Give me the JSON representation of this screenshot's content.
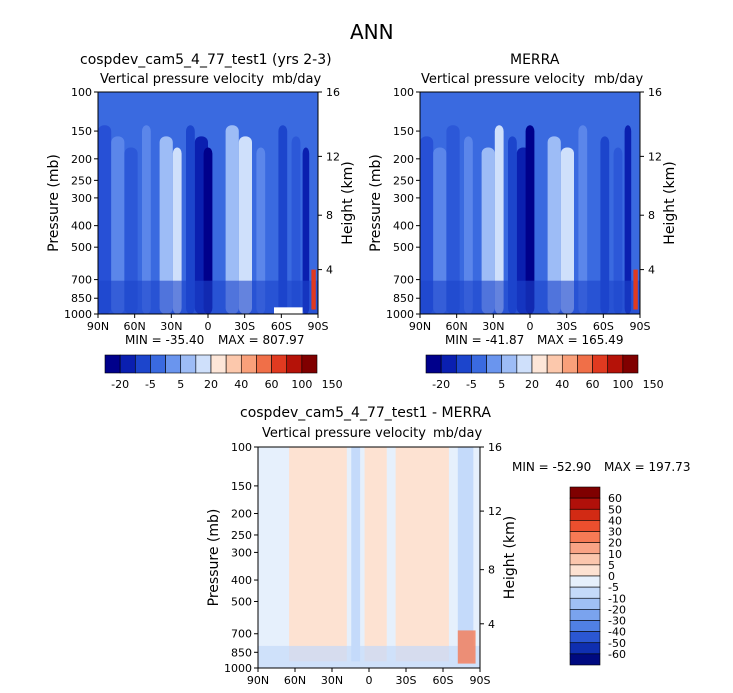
{
  "figure": {
    "title": "ANN"
  },
  "chart_data": [
    {
      "type": "heatmap",
      "title": "cospdev_cam5_4_77_test1 (yrs 2-3)",
      "subtitle_left": "Vertical pressure velocity",
      "subtitle_right": "mb/day",
      "xlabel": "",
      "ylabel": "Pressure (mb)",
      "y2label": "Height (km)",
      "x_ticks": [
        "90N",
        "60N",
        "30N",
        "0",
        "30S",
        "60S",
        "90S"
      ],
      "y_ticks": [
        "100",
        "150",
        "200",
        "250",
        "300",
        "400",
        "500",
        "700",
        "850",
        "1000"
      ],
      "y2_ticks": [
        "16",
        "12",
        "8",
        "4"
      ],
      "ylim": [
        1000,
        100
      ],
      "y_scale": "log",
      "stats": {
        "min_label": "MIN = -35.40",
        "max_label": "MAX = 807.97"
      },
      "colorbar": {
        "labels": [
          "-20",
          "-5",
          "5",
          "20",
          "40",
          "60",
          "100",
          "150"
        ],
        "colors": [
          "#00008b",
          "#0a1fb0",
          "#1c45cc",
          "#3a6ae0",
          "#6a95ee",
          "#9dbcf6",
          "#cfe0fb",
          "#fde6d8",
          "#fcc8ac",
          "#f9a07a",
          "#f06f48",
          "#e03a20",
          "#b51208",
          "#800000"
        ]
      }
    },
    {
      "type": "heatmap",
      "title": "MERRA",
      "subtitle_left": "Vertical pressure velocity",
      "subtitle_right": "mb/day",
      "xlabel": "",
      "ylabel": "Pressure (mb)",
      "y2label": "Height (km)",
      "x_ticks": [
        "90N",
        "60N",
        "30N",
        "0",
        "30S",
        "60S",
        "90S"
      ],
      "y_ticks": [
        "100",
        "150",
        "200",
        "250",
        "300",
        "400",
        "500",
        "700",
        "850",
        "1000"
      ],
      "y2_ticks": [
        "16",
        "12",
        "8",
        "4"
      ],
      "ylim": [
        1000,
        100
      ],
      "y_scale": "log",
      "stats": {
        "min_label": "MIN = -41.87",
        "max_label": "MAX = 165.49"
      },
      "colorbar": {
        "labels": [
          "-20",
          "-5",
          "5",
          "20",
          "40",
          "60",
          "100",
          "150"
        ],
        "colors": [
          "#00008b",
          "#0a1fb0",
          "#1c45cc",
          "#3a6ae0",
          "#6a95ee",
          "#9dbcf6",
          "#cfe0fb",
          "#fde6d8",
          "#fcc8ac",
          "#f9a07a",
          "#f06f48",
          "#e03a20",
          "#b51208",
          "#800000"
        ]
      }
    },
    {
      "type": "heatmap",
      "title": "cospdev_cam5_4_77_test1 - MERRA",
      "subtitle_left": "Vertical pressure velocity",
      "subtitle_right": "mb/day",
      "xlabel": "",
      "ylabel": "Pressure (mb)",
      "y2label": "Height (km)",
      "x_ticks": [
        "90N",
        "60N",
        "30N",
        "0",
        "30S",
        "60S",
        "90S"
      ],
      "y_ticks": [
        "100",
        "150",
        "200",
        "250",
        "300",
        "400",
        "500",
        "700",
        "850",
        "1000"
      ],
      "y2_ticks": [
        "16",
        "12",
        "8",
        "4"
      ],
      "ylim": [
        1000,
        100
      ],
      "y_scale": "log",
      "stats": {
        "min_label": "MIN = -52.90",
        "max_label": "MAX = 197.73"
      },
      "colorbar": {
        "labels": [
          "60",
          "50",
          "40",
          "30",
          "20",
          "10",
          "5",
          "0",
          "-5",
          "-10",
          "-20",
          "-30",
          "-40",
          "-50",
          "-60"
        ],
        "colors": [
          "#7f0000",
          "#b0100a",
          "#d22a14",
          "#ec4f2e",
          "#f67a55",
          "#f9a385",
          "#fbc6ad",
          "#fde2d2",
          "#e6f0fc",
          "#c4dafa",
          "#9fc0f5",
          "#7aa3ee",
          "#5080e4",
          "#2b57d2",
          "#0f2fb0",
          "#000a80"
        ]
      }
    }
  ]
}
